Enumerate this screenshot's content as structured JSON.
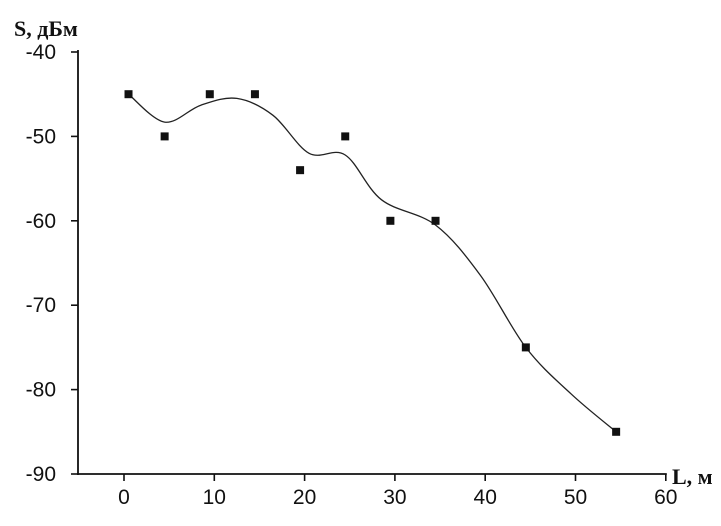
{
  "chart_data": {
    "type": "scatter",
    "ylabel": "S, дБм",
    "xlabel": "L, м",
    "xlim": [
      -5,
      60
    ],
    "ylim": [
      -90,
      -40
    ],
    "x_ticks": [
      0,
      10,
      20,
      30,
      40,
      50,
      60
    ],
    "y_ticks": [
      -40,
      -50,
      -60,
      -70,
      -80,
      -90
    ],
    "grid": false,
    "series": [
      {
        "marker": "square",
        "points": [
          {
            "x": 0.5,
            "y": -45
          },
          {
            "x": 4.5,
            "y": -50
          },
          {
            "x": 9.5,
            "y": -45
          },
          {
            "x": 14.5,
            "y": -45
          },
          {
            "x": 19.5,
            "y": -54
          },
          {
            "x": 24.5,
            "y": -50
          },
          {
            "x": 29.5,
            "y": -60
          },
          {
            "x": 34.5,
            "y": -60
          },
          {
            "x": 44.5,
            "y": -75
          },
          {
            "x": 54.5,
            "y": -85
          }
        ]
      },
      {
        "line": "smooth",
        "points": [
          {
            "x": 0.5,
            "y": -45
          },
          {
            "x": 4.5,
            "y": -48.3
          },
          {
            "x": 8.5,
            "y": -46.3
          },
          {
            "x": 12.5,
            "y": -45.5
          },
          {
            "x": 16.5,
            "y": -47.5
          },
          {
            "x": 20.5,
            "y": -52
          },
          {
            "x": 24.5,
            "y": -52.2
          },
          {
            "x": 28.5,
            "y": -57.5
          },
          {
            "x": 34.5,
            "y": -60.5
          },
          {
            "x": 39.5,
            "y": -66.5
          },
          {
            "x": 44.5,
            "y": -75
          },
          {
            "x": 49.5,
            "y": -80.5
          },
          {
            "x": 54.5,
            "y": -85
          }
        ]
      }
    ]
  }
}
